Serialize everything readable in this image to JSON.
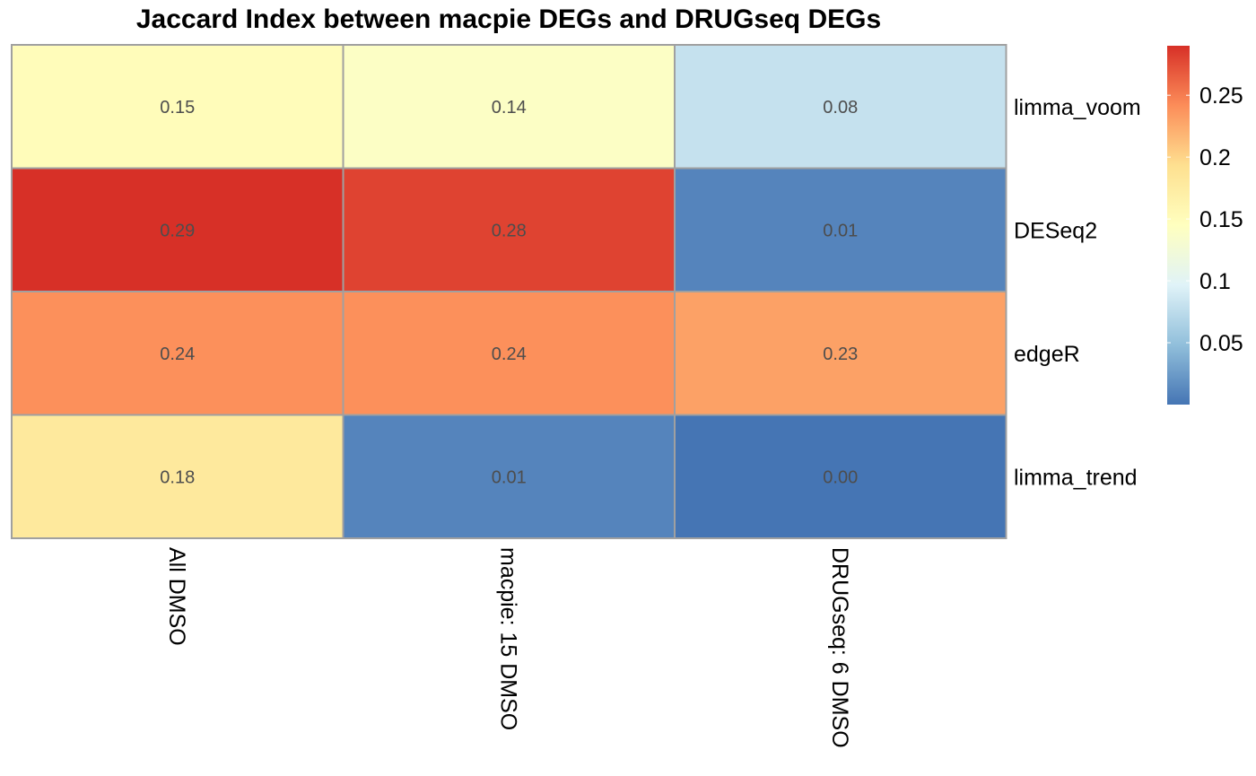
{
  "chart_data": {
    "type": "heatmap",
    "title": "Jaccard Index between macpie DEGs and DRUGseq DEGs",
    "rows": [
      "limma_voom",
      "DESeq2",
      "edgeR",
      "limma_trend"
    ],
    "columns": [
      "All DMSO",
      "macpie: 15 DMSO",
      "DRUGseq: 6 DMSO"
    ],
    "values": [
      [
        0.15,
        0.14,
        0.08
      ],
      [
        0.29,
        0.28,
        0.01
      ],
      [
        0.24,
        0.24,
        0.23
      ],
      [
        0.18,
        0.01,
        0.0
      ]
    ],
    "cell_labels": [
      [
        "0.15",
        "0.14",
        "0.08"
      ],
      [
        "0.29",
        "0.28",
        "0.01"
      ],
      [
        "0.24",
        "0.24",
        "0.23"
      ],
      [
        "0.18",
        "0.01",
        "0.00"
      ]
    ],
    "color_scale": {
      "domain": [
        0.0,
        0.29
      ],
      "colors": [
        "#4575b4",
        "#91bfdb",
        "#e0f3f8",
        "#ffffbf",
        "#fee090",
        "#fc8d59",
        "#d73027"
      ]
    },
    "legend": {
      "placement": "right",
      "ticks": [
        0.05,
        0.1,
        0.15,
        0.2,
        0.25
      ],
      "tick_labels": [
        "0.05",
        "0.1",
        "0.15",
        "0.2",
        "0.25"
      ]
    }
  }
}
